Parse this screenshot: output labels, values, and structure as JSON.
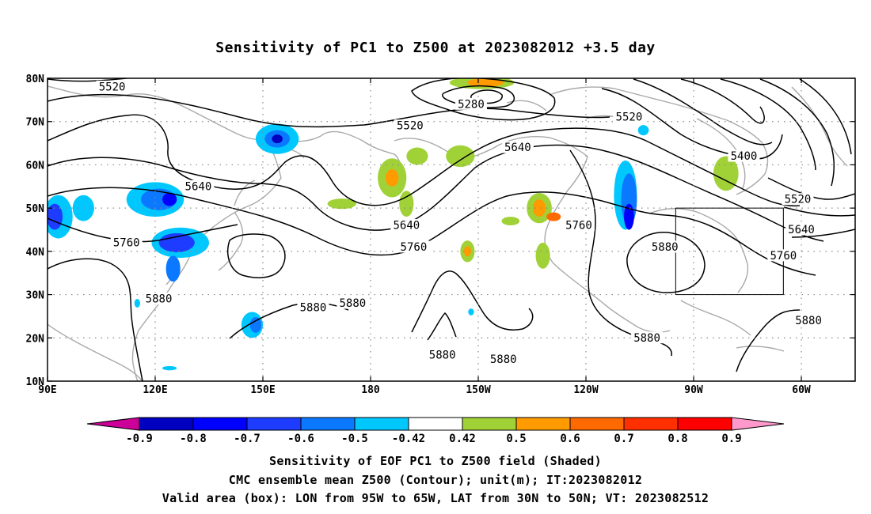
{
  "title": "Sensitivity of PC1 to Z500 at 2023082012 +3.5 day",
  "captions": [
    "Sensitivity of EOF PC1 to Z500 field (Shaded)",
    "CMC ensemble mean Z500 (Contour); unit(m); IT:2023082012",
    "Valid area (box): LON from 95W to 65W, LAT from 30N to 50N; VT: 2023082512"
  ],
  "map": {
    "lat_ticks": [
      "80N",
      "70N",
      "60N",
      "50N",
      "40N",
      "30N",
      "20N",
      "10N"
    ],
    "lat_values": [
      80,
      70,
      60,
      50,
      40,
      30,
      20,
      10
    ],
    "lon_ticks": [
      "90E",
      "120E",
      "150E",
      "180",
      "150W",
      "120W",
      "90W",
      "60W"
    ],
    "lon_values": [
      90,
      120,
      150,
      180,
      210,
      240,
      270,
      300
    ],
    "lon_range": [
      90,
      315
    ],
    "lat_range": [
      10,
      80
    ],
    "valid_box": {
      "lon": [
        265,
        295
      ],
      "lat": [
        30,
        50
      ]
    }
  },
  "colorbar": {
    "labels": [
      "-0.9",
      "-0.8",
      "-0.7",
      "-0.6",
      "-0.5",
      "-0.42",
      "0.42",
      "0.5",
      "0.6",
      "0.7",
      "0.8",
      "0.9"
    ],
    "colors": [
      "#cc0099",
      "#0000c0",
      "#0000ff",
      "#1e3cff",
      "#0a78ff",
      "#00c8ff",
      "#ffffff",
      "#a0d238",
      "#ff9b00",
      "#ff6a00",
      "#ff3000",
      "#ff0000",
      "#ff99cc"
    ]
  },
  "contours": [
    {
      "label": "5520",
      "lon": 108,
      "lat": 78
    },
    {
      "label": "5520",
      "lon": 191,
      "lat": 69
    },
    {
      "label": "5520",
      "lon": 252,
      "lat": 71
    },
    {
      "label": "5520",
      "lon": 299,
      "lat": 52
    },
    {
      "label": "5280",
      "lon": 208,
      "lat": 74
    },
    {
      "label": "5400",
      "lon": 284,
      "lat": 62
    },
    {
      "label": "5640",
      "lon": 132,
      "lat": 55
    },
    {
      "label": "5640",
      "lon": 221,
      "lat": 64
    },
    {
      "label": "5640",
      "lon": 190,
      "lat": 46
    },
    {
      "label": "5640",
      "lon": 300,
      "lat": 45
    },
    {
      "label": "5760",
      "lon": 112,
      "lat": 42
    },
    {
      "label": "5760",
      "lon": 192,
      "lat": 41
    },
    {
      "label": "5760",
      "lon": 238,
      "lat": 46
    },
    {
      "label": "5760",
      "lon": 295,
      "lat": 39
    },
    {
      "label": "5880",
      "lon": 121,
      "lat": 29
    },
    {
      "label": "5880",
      "lon": 164,
      "lat": 27
    },
    {
      "label": "5880",
      "lon": 175,
      "lat": 28
    },
    {
      "label": "5880",
      "lon": 200,
      "lat": 16
    },
    {
      "label": "5880",
      "lon": 217,
      "lat": 15
    },
    {
      "label": "5880",
      "lon": 257,
      "lat": 20
    },
    {
      "label": "5880",
      "lon": 302,
      "lat": 24
    },
    {
      "label": "5880",
      "lon": 262,
      "lat": 41
    }
  ],
  "shaded": [
    {
      "lon": 93,
      "lat": 48,
      "rx": 4,
      "ry": 5,
      "color": "#00c8ff"
    },
    {
      "lon": 92,
      "lat": 48,
      "rx": 2.2,
      "ry": 3,
      "color": "#1e3cff"
    },
    {
      "lon": 100,
      "lat": 50,
      "rx": 3,
      "ry": 3,
      "color": "#00c8ff"
    },
    {
      "lon": 120,
      "lat": 52,
      "rx": 8,
      "ry": 4,
      "color": "#00c8ff"
    },
    {
      "lon": 121,
      "lat": 52,
      "rx": 5,
      "ry": 2.5,
      "color": "#0a78ff"
    },
    {
      "lon": 124,
      "lat": 52,
      "rx": 2,
      "ry": 1.5,
      "color": "#0000ff"
    },
    {
      "lon": 127,
      "lat": 42,
      "rx": 8,
      "ry": 3.5,
      "color": "#00c8ff"
    },
    {
      "lon": 126,
      "lat": 42,
      "rx": 5,
      "ry": 2.2,
      "color": "#1e3cff"
    },
    {
      "lon": 125,
      "lat": 36,
      "rx": 2,
      "ry": 3,
      "color": "#0a78ff"
    },
    {
      "lon": 154,
      "lat": 66,
      "rx": 6,
      "ry": 3.5,
      "color": "#00c8ff"
    },
    {
      "lon": 154,
      "lat": 66,
      "rx": 3.5,
      "ry": 2,
      "color": "#0a78ff"
    },
    {
      "lon": 154,
      "lat": 66,
      "rx": 1.5,
      "ry": 1,
      "color": "#0000c0"
    },
    {
      "lon": 147,
      "lat": 23,
      "rx": 3,
      "ry": 3,
      "color": "#00c8ff"
    },
    {
      "lon": 148,
      "lat": 23,
      "rx": 1.6,
      "ry": 1.8,
      "color": "#0a78ff"
    },
    {
      "lon": 186,
      "lat": 57,
      "rx": 4,
      "ry": 4.5,
      "color": "#a0d238"
    },
    {
      "lon": 186,
      "lat": 57,
      "rx": 1.8,
      "ry": 2,
      "color": "#ff9b00"
    },
    {
      "lon": 190,
      "lat": 51,
      "rx": 2,
      "ry": 3,
      "color": "#a0d238"
    },
    {
      "lon": 172,
      "lat": 51,
      "rx": 4,
      "ry": 1.2,
      "color": "#a0d238"
    },
    {
      "lon": 193,
      "lat": 62,
      "rx": 3,
      "ry": 2,
      "color": "#a0d238"
    },
    {
      "lon": 205,
      "lat": 62,
      "rx": 4,
      "ry": 2.5,
      "color": "#a0d238"
    },
    {
      "lon": 211,
      "lat": 79,
      "rx": 9,
      "ry": 1.5,
      "color": "#a0d238"
    },
    {
      "lon": 212,
      "lat": 79,
      "rx": 5,
      "ry": 1,
      "color": "#ff9b00"
    },
    {
      "lon": 207,
      "lat": 40,
      "rx": 2,
      "ry": 2.5,
      "color": "#a0d238"
    },
    {
      "lon": 207,
      "lat": 40,
      "rx": 1,
      "ry": 1.2,
      "color": "#ff9b00"
    },
    {
      "lon": 227,
      "lat": 50,
      "rx": 3.5,
      "ry": 3.5,
      "color": "#a0d238"
    },
    {
      "lon": 227,
      "lat": 50,
      "rx": 1.8,
      "ry": 2,
      "color": "#ff9b00"
    },
    {
      "lon": 231,
      "lat": 48,
      "rx": 2,
      "ry": 1,
      "color": "#ff6a00"
    },
    {
      "lon": 219,
      "lat": 47,
      "rx": 2.5,
      "ry": 1,
      "color": "#a0d238"
    },
    {
      "lon": 228,
      "lat": 39,
      "rx": 2,
      "ry": 3,
      "color": "#a0d238"
    },
    {
      "lon": 251,
      "lat": 53,
      "rx": 3.2,
      "ry": 8,
      "color": "#00c8ff"
    },
    {
      "lon": 252,
      "lat": 52,
      "rx": 2.2,
      "ry": 6,
      "color": "#0a78ff"
    },
    {
      "lon": 252,
      "lat": 48,
      "rx": 1.4,
      "ry": 3,
      "color": "#0000ff"
    },
    {
      "lon": 256,
      "lat": 68,
      "rx": 1.5,
      "ry": 1.2,
      "color": "#00c8ff"
    },
    {
      "lon": 279,
      "lat": 58,
      "rx": 3.5,
      "ry": 4,
      "color": "#a0d238"
    },
    {
      "lon": 208,
      "lat": 26,
      "rx": 0.8,
      "ry": 0.8,
      "color": "#00c8ff"
    },
    {
      "lon": 115,
      "lat": 28,
      "rx": 0.8,
      "ry": 1,
      "color": "#00c8ff"
    },
    {
      "lon": 124,
      "lat": 13,
      "rx": 2,
      "ry": 0.5,
      "color": "#00c8ff"
    }
  ]
}
